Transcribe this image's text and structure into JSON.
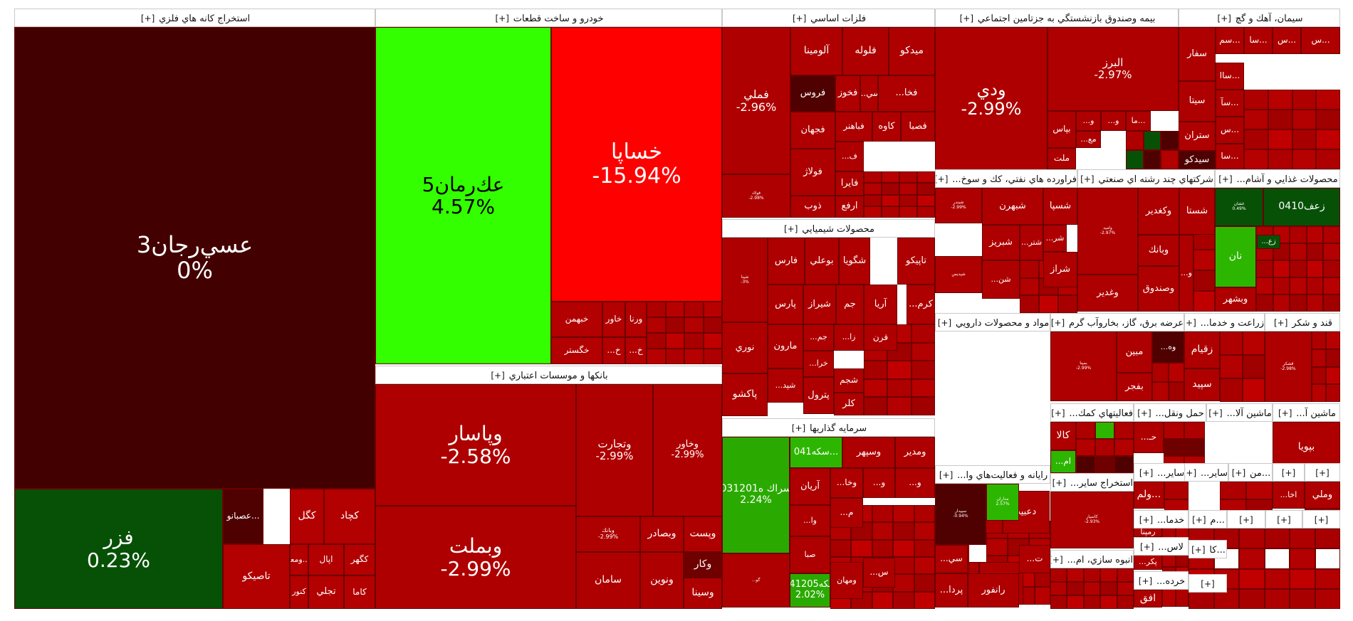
{
  "sectors": [
    {
      "name": "استخراج کانه هاي فلزي",
      "expand": "[+]",
      "tiles": [
        {
          "name": "ﻋﺴﻲرﺟﺎن3",
          "pct": "0%",
          "color": "#430000"
        },
        {
          "name": "فزر",
          "pct": "0.23%",
          "color": "#075107"
        },
        {
          "name": "كچاد",
          "color": "#b30000"
        },
        {
          "name": "كگل",
          "color": "#b30000"
        },
        {
          "name": "عصبانو...",
          "color": "#4f0000"
        },
        {
          "name": "كگهر",
          "color": "#b30000"
        },
        {
          "name": "اپال",
          "color": "#b30000"
        },
        {
          "name": "ومعا...",
          "color": "#b30000"
        },
        {
          "name": "تاصيكو",
          "color": "#b30000"
        },
        {
          "name": "تجلي",
          "color": "#b30000"
        },
        {
          "name": "كنور",
          "color": "#b30000"
        },
        {
          "name": "كاما",
          "color": "#b30000"
        }
      ]
    },
    {
      "name": "خودرو و ساخت قطعات",
      "expand": "[+]",
      "tiles": [
        {
          "name": "ﻋﻚرﻣﺎن5",
          "pct": "4.57%",
          "color": "#33ff00",
          "text": "#000000"
        },
        {
          "name": "خساپا",
          "pct": "-15.94%",
          "color": "#ff0000"
        },
        {
          "name": "خبهمن",
          "color": "#b30000"
        },
        {
          "name": "خاور",
          "color": "#b30000"
        },
        {
          "name": "ورنا",
          "color": "#b30000"
        },
        {
          "name": "خگستر",
          "color": "#b30000"
        },
        {
          "name": "...خ",
          "color": "#b30000"
        },
        {
          "name": "...خ",
          "color": "#b30000"
        }
      ]
    },
    {
      "name": "بانكها و موسسات اعتباري",
      "expand": "[+]",
      "tiles": [
        {
          "name": "وپاسار",
          "pct": "-2.58%",
          "color": "#ae0000"
        },
        {
          "name": "وبملت",
          "pct": "-2.99%",
          "color": "#ae0000"
        },
        {
          "name": "وتجارت",
          "pct": "-2.99%",
          "color": "#ae0000"
        },
        {
          "name": "وخاور",
          "pct": "-2.99%",
          "color": "#ae0000"
        },
        {
          "name": "وبصادر",
          "color": "#ae0000"
        },
        {
          "name": "وپست",
          "color": "#ae0000"
        },
        {
          "name": "سامان",
          "color": "#ae0000"
        },
        {
          "name": "ونوين",
          "color": "#ae0000"
        },
        {
          "name": "وكار",
          "color": "#6e0000"
        },
        {
          "name": "وسينا",
          "color": "#ae0000"
        },
        {
          "name": "وبانك",
          "pct": "-2.99%",
          "color": "#ae0000"
        }
      ]
    },
    {
      "name": "فلزات اساسي",
      "expand": "[+]",
      "tiles": [
        {
          "name": "فملي",
          "pct": "-2.96%",
          "color": "#ae0000"
        },
        {
          "name": "آلومينا",
          "color": "#ae0000"
        },
        {
          "name": "فلوله",
          "color": "#ae0000"
        },
        {
          "name": "ميدكو",
          "color": "#ae0000"
        },
        {
          "name": "فروس",
          "color": "#4f0000"
        },
        {
          "name": "فخوز",
          "color": "#ae0000"
        },
        {
          "name": "...سي",
          "color": "#ae0000"
        },
        {
          "name": "...فخا",
          "color": "#ae0000"
        },
        {
          "name": "فجهان",
          "color": "#ae0000"
        },
        {
          "name": "فباهنر",
          "color": "#ae0000"
        },
        {
          "name": "كاوه",
          "color": "#ae0000"
        },
        {
          "name": "فصبا",
          "color": "#ae0000"
        },
        {
          "name": "فولاژ",
          "color": "#ae0000"
        },
        {
          "name": "...ف",
          "color": "#ae0000"
        },
        {
          "name": "ذوب",
          "color": "#ae0000"
        },
        {
          "name": "فايرا",
          "color": "#ae0000"
        },
        {
          "name": "ارفع",
          "color": "#ae0000"
        },
        {
          "name": "فولاد",
          "pct": "-2.98%",
          "color": "#ae0000"
        }
      ]
    },
    {
      "name": "بيمه وصندوق بازنشستگي به جزتامين اجتماعي",
      "expand": "[+]",
      "tiles": [
        {
          "name": "ودي",
          "pct": "-2.99%",
          "color": "#ae0000"
        },
        {
          "name": "البرز",
          "pct": "-2.97%",
          "color": "#ae0000"
        },
        {
          "name": "بپاس",
          "color": "#ae0000"
        },
        {
          "name": "...و",
          "color": "#ae0000"
        },
        {
          "name": "...و",
          "color": "#ae0000"
        },
        {
          "name": "ما...",
          "color": "#ae0000"
        },
        {
          "name": "...مع",
          "color": "#ae0000"
        },
        {
          "name": "ملت",
          "color": "#ae0000"
        }
      ]
    },
    {
      "name": "سيمان، آهك و گچ",
      "expand": "[+]",
      "tiles": [
        {
          "name": "سفار",
          "color": "#ae0000"
        },
        {
          "name": "سم...",
          "color": "#ae0000"
        },
        {
          "name": "سا...",
          "color": "#ae0000"
        },
        {
          "name": "س...",
          "color": "#ae0000"
        },
        {
          "name": "س...",
          "color": "#ae0000"
        },
        {
          "name": "ساا...",
          "color": "#ae0000"
        },
        {
          "name": "سيتا",
          "color": "#ae0000"
        },
        {
          "name": "سآ...",
          "color": "#ae0000"
        },
        {
          "name": "ستران",
          "color": "#ae0000"
        },
        {
          "name": "س...",
          "color": "#ae0000"
        },
        {
          "name": "سيدكو",
          "color": "#4f0000"
        },
        {
          "name": "سا...",
          "color": "#ae0000"
        }
      ]
    },
    {
      "name": "محصولات شيميايي",
      "expand": "[+]",
      "tiles": [
        {
          "name": "شپنا",
          "pct": "-3%",
          "color": "#ae0000"
        },
        {
          "name": "فارس",
          "color": "#ae0000"
        },
        {
          "name": "بوعلي",
          "color": "#ae0000"
        },
        {
          "name": "شگويا",
          "color": "#ae0000"
        },
        {
          "name": "تاپيكو",
          "color": "#ae0000"
        },
        {
          "name": "پارس",
          "color": "#ae0000"
        },
        {
          "name": "شيراز",
          "color": "#ae0000"
        },
        {
          "name": "جم",
          "color": "#ae0000"
        },
        {
          "name": "آريا",
          "color": "#ae0000"
        },
        {
          "name": "...كرم",
          "color": "#ae0000"
        },
        {
          "name": "نوري",
          "color": "#ae0000"
        },
        {
          "name": "مارون",
          "color": "#ae0000"
        },
        {
          "name": "...جم",
          "color": "#ae0000"
        },
        {
          "name": "...زا",
          "color": "#ae0000"
        },
        {
          "name": "قرن",
          "color": "#ae0000"
        },
        {
          "name": "پاكشو",
          "color": "#ae0000"
        },
        {
          "name": "...خرا",
          "color": "#ae0000"
        },
        {
          "name": "شجم",
          "color": "#ae0000"
        },
        {
          "name": "...شپد",
          "color": "#ae0000"
        },
        {
          "name": "پترول",
          "color": "#ae0000"
        },
        {
          "name": "كلر",
          "color": "#ae0000"
        }
      ]
    },
    {
      "name": "فراورده هاي نفتي، كك و سوخ...",
      "expand": "[+]",
      "tiles": [
        {
          "name": "شبندر",
          "pct": "-2.99%",
          "color": "#ae0000"
        },
        {
          "name": "شبهرن",
          "color": "#ae0000"
        },
        {
          "name": "شسپا",
          "color": "#ae0000"
        },
        {
          "name": "شبريز",
          "color": "#ae0000"
        },
        {
          "name": "...شتر",
          "color": "#ae0000"
        },
        {
          "name": "...شر",
          "color": "#ae0000"
        },
        {
          "name": "شراز",
          "color": "#ae0000"
        },
        {
          "name": "...شن",
          "color": "#ae0000"
        },
        {
          "name": "شپديس",
          "color": "#ae0000"
        }
      ]
    },
    {
      "name": "شركتهاي چند رشته اي صنعتي",
      "expand": "[+]",
      "tiles": [
        {
          "name": "وامید",
          "pct": "-2.97%",
          "color": "#ae0000"
        },
        {
          "name": "وكغدير",
          "color": "#ae0000"
        },
        {
          "name": "شستا",
          "color": "#ae0000"
        },
        {
          "name": "وبانك",
          "color": "#ae0000"
        },
        {
          "name": "وغدير",
          "color": "#ae0000"
        },
        {
          "name": "وصندوق",
          "color": "#ae0000"
        },
        {
          "name": "...و",
          "color": "#ae0000"
        }
      ]
    },
    {
      "name": "محصولات غذايي و آشام...",
      "expand": "[+]",
      "tiles": [
        {
          "name": "غشان",
          "pct": "0.49%",
          "color": "#075107"
        },
        {
          "name": "0410زعف",
          "color": "#075107"
        },
        {
          "name": "...زع",
          "color": "#075107"
        },
        {
          "name": "نان",
          "color": "#2db600"
        },
        {
          "name": "وبشهر",
          "color": "#ae0000"
        }
      ]
    },
    {
      "name": "سرمايه گذاريها",
      "expand": "[+]",
      "tiles": [
        {
          "name": "0312سراك ه01",
          "pct": "2.24%",
          "color": "#2aaa00"
        },
        {
          "name": "041سكه...",
          "color": "#2db600"
        },
        {
          "name": "وسپهر",
          "color": "#ae0000"
        },
        {
          "name": "ومدير",
          "color": "#ae0000"
        },
        {
          "name": "آريان",
          "color": "#ae0000"
        },
        {
          "name": "...وخا",
          "color": "#ae0000"
        },
        {
          "name": "...و",
          "color": "#ae0000"
        },
        {
          "name": "...و",
          "color": "#ae0000"
        },
        {
          "name": "...وا",
          "color": "#ae0000"
        },
        {
          "name": "...م",
          "color": "#ae0000"
        },
        {
          "name": "صبا",
          "color": "#ae0000"
        },
        {
          "name": "...گو",
          "color": "#ae0000"
        },
        {
          "name": "0412سكه05",
          "pct": "2.02%",
          "color": "#2aaa00"
        },
        {
          "name": "ومهان",
          "color": "#ae0000"
        },
        {
          "name": "...س",
          "color": "#ae0000"
        }
      ]
    },
    {
      "name": "مواد و محصولات دارويي",
      "expand": "[+]",
      "tiles": [
        {
          "name": "تيپيكو",
          "color": "#ae0000"
        },
        {
          "name": "دعبيد",
          "color": "#ae0000"
        },
        {
          "name": "...دقا",
          "color": "#ae0000"
        },
        {
          "name": "...دزا",
          "color": "#ae0000"
        },
        {
          "name": "...د",
          "color": "#ae0000"
        },
        {
          "name": "...د",
          "color": "#ae0000"
        },
        {
          "name": "...و",
          "color": "#ae0000"
        },
        {
          "name": "...بر",
          "color": "#ae0000"
        },
        {
          "name": "...ب",
          "color": "#ae0000"
        }
      ]
    },
    {
      "name": "عرضه برق، گاز، بخاروآب گرم",
      "expand": "[+]",
      "tiles": [
        {
          "name": "بمپنا",
          "pct": "-2.99%",
          "color": "#ae0000"
        },
        {
          "name": "مبين",
          "color": "#ae0000"
        },
        {
          "name": "...وه",
          "color": "#4f0000"
        },
        {
          "name": "بفجر",
          "color": "#ae0000"
        }
      ]
    },
    {
      "name": "زراعت و خدما...",
      "expand": "[+]",
      "tiles": [
        {
          "name": "زقيام",
          "color": "#ae0000"
        },
        {
          "name": "سپيد",
          "color": "#ae0000"
        }
      ]
    },
    {
      "name": "قند و شكر",
      "expand": "[+]",
      "tiles": [
        {
          "name": "قشکر",
          "pct": "-2.98%",
          "color": "#ae0000"
        }
      ]
    },
    {
      "name": "فعاليتهاي كمك...",
      "expand": "[+]",
      "tiles": [
        {
          "name": "كالا",
          "color": "#ae0000"
        },
        {
          "name": "...ام",
          "color": "#2db600"
        }
      ]
    },
    {
      "name": "حمل ونقل...",
      "expand": "[+]",
      "tiles": [
        {
          "name": "...حـ",
          "color": "#ae0000"
        }
      ]
    },
    {
      "name": "ماشين آلا...",
      "expand": "[+]",
      "tiles": []
    },
    {
      "name": "ماشين آ...",
      "expand": "[+]",
      "tiles": [
        {
          "name": "بپويا",
          "color": "#ae0000"
        }
      ]
    },
    {
      "name": "رايانه و فعاليت‌هاي وا...",
      "expand": "[+]",
      "tiles": [
        {
          "name": "سپيدار",
          "pct": "-0.94%",
          "color": "#4f0000"
        },
        {
          "name": "مداران",
          "pct": "2.57%",
          "color": "#2db600"
        },
        {
          "name": "...سي",
          "color": "#ae0000"
        },
        {
          "name": "...ت",
          "color": "#ae0000"
        },
        {
          "name": "...پردا",
          "color": "#ae0000"
        },
        {
          "name": "رانفور",
          "color": "#ae0000"
        }
      ]
    },
    {
      "name": "استخراج ساير...",
      "expand": "[+]",
      "tiles": [
        {
          "name": "كاسپار",
          "pct": "-2.93%",
          "color": "#ae0000"
        }
      ]
    },
    {
      "name": "انبوه سازي، ام...",
      "expand": "[+]",
      "tiles": []
    },
    {
      "name": "ساير...",
      "expand": "[+]",
      "tiles": [
        {
          "name": "ولم...",
          "color": "#ae0000"
        }
      ]
    },
    {
      "name": "ساير...",
      "expand": "[+]",
      "tiles": []
    },
    {
      "name": "...من",
      "expand": "[+]",
      "tiles": []
    },
    {
      "name": "",
      "expand": "[+]",
      "tiles": [
        {
          "name": "وملي",
          "color": "#ae0000"
        }
      ]
    },
    {
      "name": "",
      "expand": "[+]",
      "tiles": [
        {
          "name": "...اخا",
          "color": "#ae0000"
        }
      ]
    },
    {
      "name": "لاس...",
      "expand": "[+]",
      "tiles": [
        {
          "name": "...پكر",
          "color": "#ae0000"
        }
      ]
    },
    {
      "name": "خدما...",
      "expand": "[+]",
      "tiles": [
        {
          "name": "رمپنا",
          "color": "#ae0000"
        }
      ]
    },
    {
      "name": "خرده...",
      "expand": "[+]",
      "tiles": [
        {
          "name": "افق",
          "color": "#ae0000"
        }
      ]
    },
    {
      "name": "...م",
      "expand": "[+]",
      "tiles": []
    },
    {
      "name": "",
      "expand": "[+]",
      "tiles": []
    },
    {
      "name": "...كا",
      "expand": "[+]",
      "tiles": []
    },
    {
      "name": "",
      "expand": "[+]",
      "tiles": []
    },
    {
      "name": "",
      "expand": "[+]",
      "tiles": []
    },
    {
      "name": "",
      "expand": "[+]",
      "tiles": []
    }
  ],
  "chart_data": {
    "type": "treemap",
    "title": "",
    "color_scale": {
      "positive": "#33ff00",
      "neutral": "#430000",
      "negative": "#ff0000",
      "negative_default": "#ae0000"
    },
    "labeled_items": [
      {
        "sector": "استخراج کانه هاي فلزي",
        "name": "ﻋﺴﻲرﺟﺎن3",
        "change_pct": 0
      },
      {
        "sector": "استخراج کانه هاي فلزي",
        "name": "فزر",
        "change_pct": 0.23
      },
      {
        "sector": "خودرو و ساخت قطعات",
        "name": "ﻋﻚرﻣﺎن5",
        "change_pct": 4.57
      },
      {
        "sector": "خودرو و ساخت قطعات",
        "name": "خساپا",
        "change_pct": -15.94
      },
      {
        "sector": "بانكها و موسسات اعتباري",
        "name": "وپاسار",
        "change_pct": -2.58
      },
      {
        "sector": "بانكها و موسسات اعتباري",
        "name": "وبملت",
        "change_pct": -2.99
      },
      {
        "sector": "بانكها و موسسات اعتباري",
        "name": "وتجارت",
        "change_pct": -2.99
      },
      {
        "sector": "بانكها و موسسات اعتباري",
        "name": "وخاور",
        "change_pct": -2.99
      },
      {
        "sector": "فلزات اساسي",
        "name": "فملي",
        "change_pct": -2.96
      },
      {
        "sector": "بيمه وصندوق بازنشستگي به جزتامين اجتماعي",
        "name": "ودي",
        "change_pct": -2.99
      },
      {
        "sector": "بيمه وصندوق بازنشستگي به جزتامين اجتماعي",
        "name": "البرز",
        "change_pct": -2.97
      },
      {
        "sector": "سرمايه گذاريها",
        "name": "0312سراك ه01",
        "change_pct": 2.24
      },
      {
        "sector": "رايانه و فعاليت‌هاي وا...",
        "name": "سپيدار",
        "change_pct": -0.94
      },
      {
        "sector": "استخراج ساير...",
        "name": "كاسپار",
        "change_pct": -2.93
      }
    ]
  }
}
